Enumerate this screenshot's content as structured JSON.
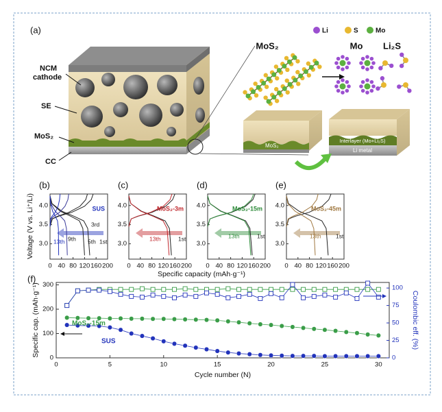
{
  "panel_a": {
    "label": "(a)",
    "legend": [
      "Li",
      "S",
      "Mo"
    ],
    "cathode_label": [
      "NCM",
      "cathode"
    ],
    "se_label": "SE",
    "mos2_label": "MoS₂",
    "cc_label": "CC",
    "film_label": "MoS₂",
    "reactant": "MoS₂",
    "products": [
      "Mo",
      "Li₂S"
    ],
    "interlayer": "Interlayer (Mo+Li₂S)",
    "metal": "Li metal"
  },
  "shared_axes": {
    "xlabel": "Specific capacity (mAh·g⁻¹)",
    "ylabel": "Voltage (V vs. Li⁺/Li)"
  },
  "chart_data": [
    {
      "type": "line",
      "label": "(b)",
      "sample_label": "SUS",
      "accent_color": "#2233bb",
      "xlim": [
        0,
        200
      ],
      "xticks": [
        0,
        40,
        80,
        120,
        160,
        200
      ],
      "ylim": [
        2.6,
        4.3
      ],
      "yticks": [
        {
          "value": 3,
          "label": "3.0"
        },
        3.5,
        {
          "value": 4,
          "label": "4.0"
        }
      ],
      "annotations": [
        "13th",
        "9th",
        "5th",
        "3rd",
        "1st"
      ],
      "series": [
        {
          "color": "#222222",
          "x": [
            0,
            8,
            30,
            75,
            120,
            143,
            150
          ],
          "values": [
            3.45,
            3.65,
            3.72,
            3.82,
            3.98,
            4.15,
            4.3
          ]
        },
        {
          "color": "#222222",
          "x": [
            0,
            7,
            41,
            83,
            117,
            131,
            138
          ],
          "values": [
            4.25,
            4.05,
            3.85,
            3.72,
            3.6,
            3.4,
            2.7
          ]
        },
        {
          "color": "#222222",
          "x": [
            0,
            7,
            26,
            65,
            104,
            124,
            130
          ],
          "values": [
            3.45,
            3.65,
            3.72,
            3.82,
            3.98,
            4.15,
            4.3
          ]
        },
        {
          "color": "#222222",
          "x": [
            0,
            6,
            36,
            72,
            102,
            114,
            120
          ],
          "values": [
            4.25,
            4.05,
            3.85,
            3.72,
            3.6,
            3.4,
            2.7
          ]
        },
        {
          "color": "#3a3a9a",
          "x": [
            0,
            3,
            13,
            33,
            52,
            62,
            65
          ],
          "values": [
            3.45,
            3.65,
            3.72,
            3.82,
            3.98,
            4.15,
            4.3
          ]
        },
        {
          "color": "#3a3a9a",
          "x": [
            0,
            3,
            18,
            36,
            51,
            57,
            60
          ],
          "values": [
            4.25,
            4.05,
            3.85,
            3.72,
            3.6,
            3.4,
            2.7
          ]
        },
        {
          "color": "#2233bb",
          "x": [
            0,
            2,
            7,
            18,
            28,
            33,
            35
          ],
          "values": [
            3.45,
            3.65,
            3.72,
            3.82,
            3.98,
            4.15,
            4.3
          ]
        },
        {
          "color": "#2233bb",
          "x": [
            0,
            2,
            9,
            18,
            26,
            29,
            30
          ],
          "values": [
            4.25,
            4.05,
            3.85,
            3.72,
            3.6,
            3.4,
            2.7
          ]
        }
      ]
    },
    {
      "type": "line",
      "label": "(c)",
      "sample_label": "MoS₂-3m",
      "accent_color": "#c0282d",
      "xlim": [
        0,
        200
      ],
      "xticks": [
        0,
        40,
        80,
        120,
        160,
        200
      ],
      "ylim": [
        2.6,
        4.3
      ],
      "yticks": [
        {
          "value": 3,
          "label": "3.0"
        },
        3.5,
        {
          "value": 4,
          "label": "4.0"
        }
      ],
      "annotations": [
        "13th",
        "1st"
      ],
      "series": [
        {
          "color": "#222222",
          "x": [
            0,
            8,
            32,
            80,
            128,
            152,
            160
          ],
          "values": [
            3.45,
            3.65,
            3.72,
            3.82,
            3.98,
            4.15,
            4.3
          ]
        },
        {
          "color": "#222222",
          "x": [
            0,
            7,
            44,
            89,
            126,
            141,
            148
          ],
          "values": [
            4.25,
            4.05,
            3.85,
            3.72,
            3.6,
            3.4,
            2.7
          ]
        },
        {
          "color": "#c0282d",
          "x": [
            0,
            8,
            30,
            75,
            120,
            143,
            150
          ],
          "values": [
            3.45,
            3.65,
            3.72,
            3.82,
            3.98,
            4.15,
            4.3
          ]
        },
        {
          "color": "#c0282d",
          "x": [
            0,
            7,
            42,
            84,
            119,
            133,
            140
          ],
          "values": [
            4.25,
            4.05,
            3.85,
            3.72,
            3.6,
            3.4,
            2.7
          ]
        }
      ]
    },
    {
      "type": "line",
      "label": "(d)",
      "sample_label": "MoS₂-15m",
      "accent_color": "#2e8b3a",
      "xlim": [
        0,
        200
      ],
      "xticks": [
        0,
        40,
        80,
        120,
        160,
        200
      ],
      "ylim": [
        2.6,
        4.3
      ],
      "yticks": [
        {
          "value": 3,
          "label": "3.0"
        },
        3.5,
        {
          "value": 4,
          "label": "4.0"
        }
      ],
      "annotations": [
        "13th",
        "1st"
      ],
      "series": [
        {
          "color": "#222222",
          "x": [
            0,
            8,
            33,
            83,
            132,
            157,
            165
          ],
          "values": [
            3.45,
            3.65,
            3.72,
            3.82,
            3.98,
            4.15,
            4.3
          ]
        },
        {
          "color": "#222222",
          "x": [
            0,
            8,
            47,
            93,
            132,
            147,
            155
          ],
          "values": [
            4.25,
            4.05,
            3.85,
            3.72,
            3.6,
            3.4,
            2.7
          ]
        },
        {
          "color": "#2e8b3a",
          "x": [
            0,
            8,
            32,
            80,
            128,
            152,
            160
          ],
          "values": [
            3.45,
            3.65,
            3.72,
            3.82,
            3.98,
            4.15,
            4.3
          ]
        },
        {
          "color": "#2e8b3a",
          "x": [
            0,
            8,
            45,
            90,
            128,
            143,
            150
          ],
          "values": [
            4.25,
            4.05,
            3.85,
            3.72,
            3.6,
            3.4,
            2.7
          ]
        }
      ]
    },
    {
      "type": "line",
      "label": "(e)",
      "sample_label": "MoS₂-45m",
      "accent_color": "#a07840",
      "xlim": [
        0,
        200
      ],
      "xticks": [
        0,
        40,
        80,
        120,
        160,
        200
      ],
      "ylim": [
        2.6,
        4.3
      ],
      "yticks": [
        {
          "value": 3,
          "label": "3.0"
        },
        3.5,
        {
          "value": 4,
          "label": "4.0"
        }
      ],
      "annotations": [
        "13th",
        "1st"
      ],
      "series": [
        {
          "color": "#222222",
          "x": [
            0,
            8,
            31,
            78,
            124,
            147,
            155
          ],
          "values": [
            3.45,
            3.65,
            3.72,
            3.82,
            3.98,
            4.15,
            4.3
          ]
        },
        {
          "color": "#222222",
          "x": [
            0,
            7,
            44,
            87,
            123,
            138,
            145
          ],
          "values": [
            4.25,
            4.05,
            3.85,
            3.72,
            3.6,
            3.4,
            2.7
          ]
        },
        {
          "color": "#a07840",
          "x": [
            0,
            6,
            22,
            55,
            88,
            105,
            110
          ],
          "values": [
            3.45,
            3.65,
            3.72,
            3.82,
            3.98,
            4.15,
            4.3
          ]
        },
        {
          "color": "#a07840",
          "x": [
            0,
            5,
            30,
            60,
            85,
            95,
            100
          ],
          "values": [
            4.25,
            4.05,
            3.85,
            3.72,
            3.6,
            3.4,
            2.7
          ]
        }
      ]
    },
    {
      "type": "line",
      "label": "(f)",
      "xlabel": "Cycle number (N)",
      "ylabel": "Specific cap. (mAh·g⁻¹)",
      "y2label": "Coulombic eff. (%)",
      "x": [
        1,
        2,
        3,
        4,
        5,
        6,
        7,
        8,
        9,
        10,
        11,
        12,
        13,
        14,
        15,
        16,
        17,
        18,
        19,
        20,
        21,
        22,
        23,
        24,
        25,
        26,
        27,
        28,
        29,
        30
      ],
      "xlim": [
        0,
        31
      ],
      "xticks": [
        0,
        5,
        10,
        15,
        20,
        25,
        30
      ],
      "ylim": [
        0,
        310
      ],
      "yticks": [
        0,
        100,
        200,
        300
      ],
      "y2lim": [
        0,
        108
      ],
      "y2ticks": [
        0,
        25,
        50,
        75,
        100
      ],
      "series": [
        {
          "name": "MoS₂-15m",
          "color": "#3a9d48",
          "marker": "circle",
          "values": [
            165,
            164,
            163,
            163,
            162,
            162,
            161,
            161,
            160,
            160,
            159,
            158,
            157,
            156,
            154,
            150,
            146,
            142,
            138,
            135,
            131,
            127,
            123,
            119,
            115,
            111,
            106,
            102,
            96,
            92
          ]
        },
        {
          "name": "SUS",
          "color": "#2233bb",
          "marker": "circle",
          "values": [
            135,
            133,
            132,
            131,
            125,
            115,
            100,
            90,
            80,
            68,
            58,
            50,
            42,
            35,
            28,
            22,
            18,
            15,
            12,
            10,
            9,
            8,
            8,
            8,
            7,
            7,
            7,
            7,
            7,
            7
          ]
        },
        {
          "color": "#3a9d48",
          "marker": "square-open",
          "axis": "y2",
          "values": [
            75,
            96,
            97,
            98,
            98,
            98,
            98,
            99,
            98,
            98,
            98,
            99,
            98,
            98,
            98,
            99,
            98,
            98,
            98,
            98,
            98,
            98,
            98,
            98,
            98,
            98,
            98,
            98,
            98,
            98
          ]
        },
        {
          "color": "#2233bb",
          "marker": "square-open",
          "axis": "y2",
          "values": [
            75,
            96,
            97,
            97,
            95,
            91,
            88,
            87,
            90,
            88,
            86,
            90,
            88,
            93,
            91,
            86,
            88,
            91,
            85,
            92,
            86,
            105,
            86,
            88,
            90,
            87,
            93,
            85,
            107,
            87
          ]
        }
      ]
    }
  ]
}
